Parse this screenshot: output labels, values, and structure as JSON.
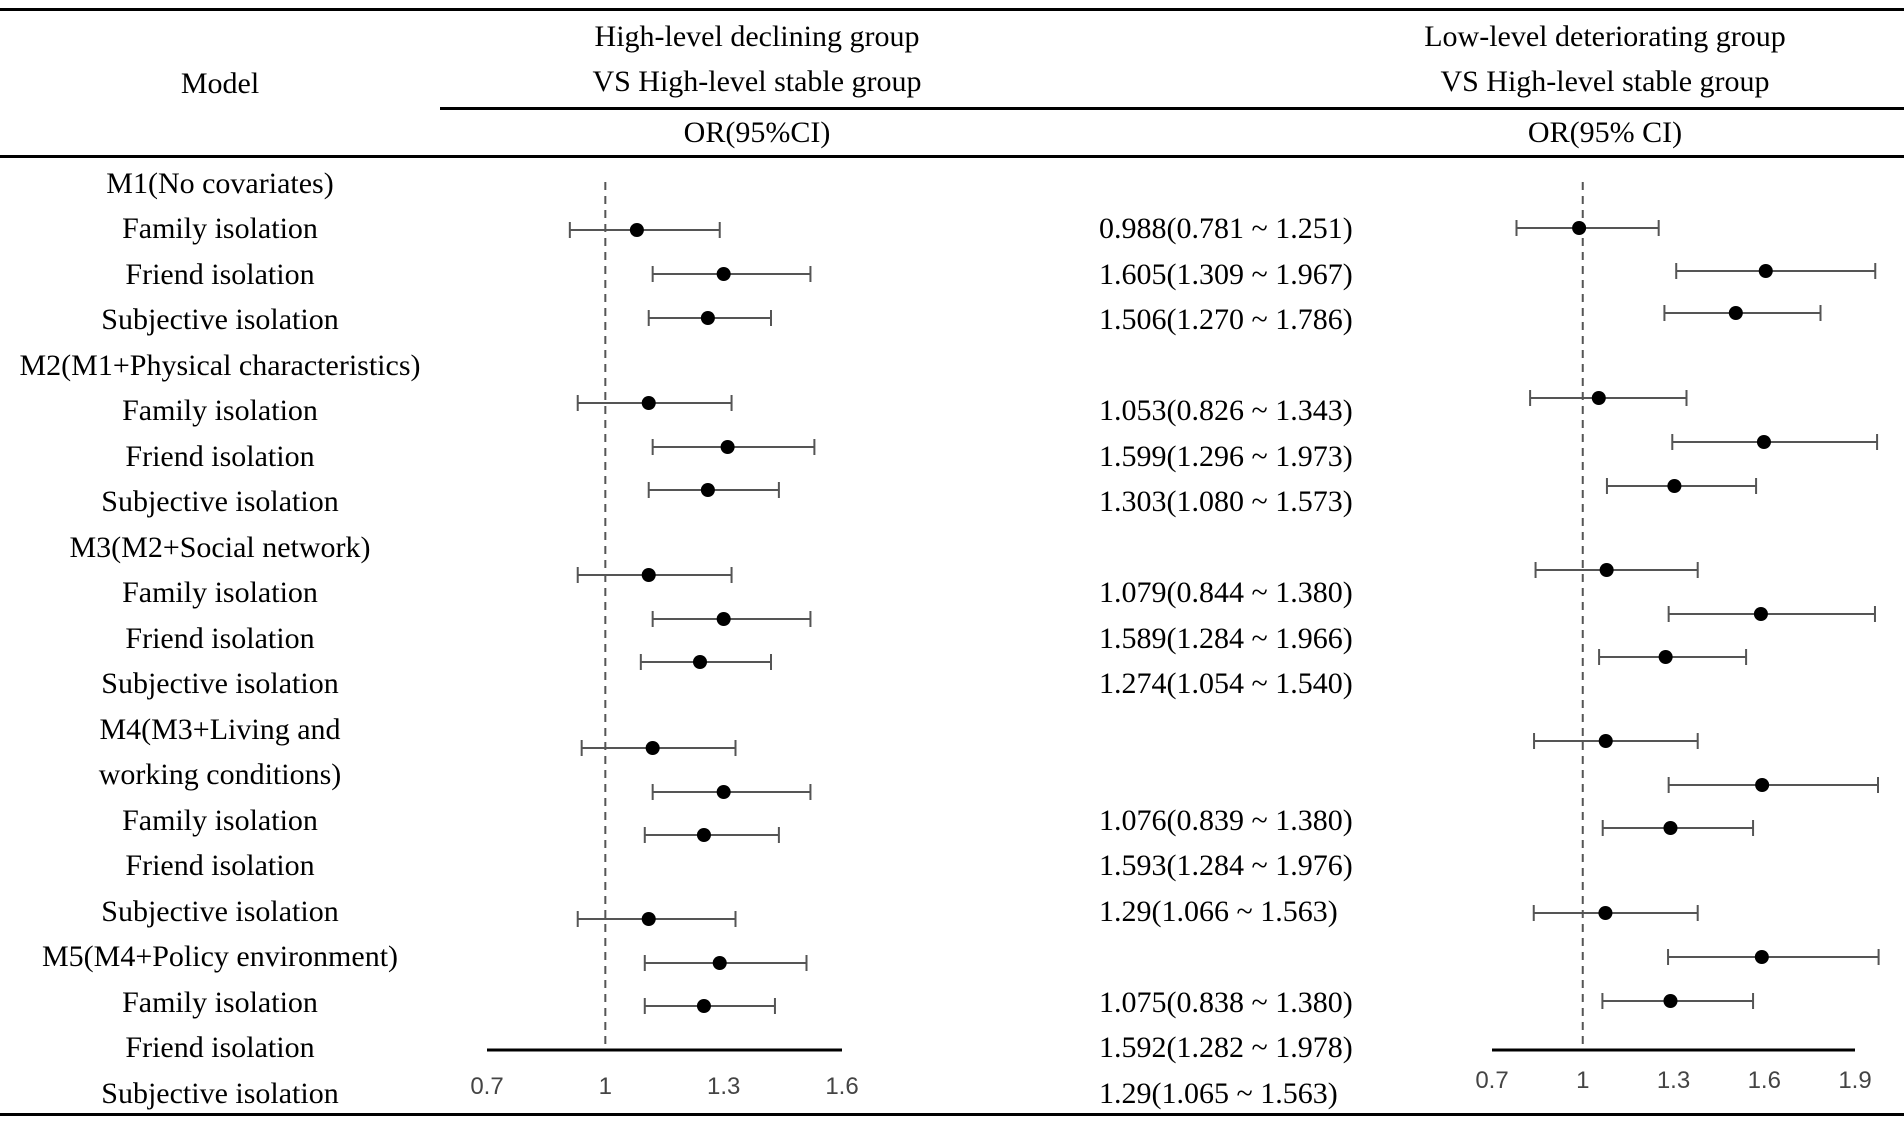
{
  "header": {
    "model_label": "Model",
    "group1_line1": "High-level declining group",
    "group1_line2": "VS High-level stable group",
    "group2_line1": "Low-level deteriorating group",
    "group2_line2": "VS High-level stable group",
    "or_label_1": "OR(95%CI)",
    "or_label_2": "OR(95% CI)"
  },
  "rows": [
    {
      "label": "M1(No covariates)",
      "or": ""
    },
    {
      "label": "Family isolation",
      "or": "0.988(0.781 ~ 1.251)"
    },
    {
      "label": "Friend isolation",
      "or": "1.605(1.309 ~ 1.967)"
    },
    {
      "label": "Subjective isolation",
      "or": "1.506(1.270 ~ 1.786)"
    },
    {
      "label": "M2(M1+Physical characteristics)",
      "or": ""
    },
    {
      "label": "Family isolation",
      "or": "1.053(0.826 ~ 1.343)"
    },
    {
      "label": "Friend isolation",
      "or": "1.599(1.296 ~ 1.973)"
    },
    {
      "label": "Subjective isolation",
      "or": "1.303(1.080 ~ 1.573)"
    },
    {
      "label": "M3(M2+Social network)",
      "or": ""
    },
    {
      "label": "Family isolation",
      "or": "1.079(0.844 ~ 1.380)"
    },
    {
      "label": "Friend isolation",
      "or": "1.589(1.284 ~ 1.966)"
    },
    {
      "label": "Subjective isolation",
      "or": "1.274(1.054 ~ 1.540)"
    },
    {
      "label": "M4(M3+Living and",
      "or": ""
    },
    {
      "label": "working conditions)",
      "or": ""
    },
    {
      "label": "Family isolation",
      "or": "1.076(0.839 ~ 1.380)"
    },
    {
      "label": "Friend isolation",
      "or": "1.593(1.284 ~ 1.976)"
    },
    {
      "label": "Subjective isolation",
      "or": "1.29(1.066 ~ 1.563)"
    },
    {
      "label": "M5(M4+Policy environment)",
      "or": ""
    },
    {
      "label": "Family isolation",
      "or": "1.075(0.838 ~ 1.380)"
    },
    {
      "label": "Friend isolation",
      "or": "1.592(1.282 ~ 1.978)"
    },
    {
      "label": "Subjective isolation",
      "or": "1.29(1.065 ~ 1.563)"
    }
  ],
  "chart_data": [
    {
      "type": "forest",
      "title": "High-level declining group VS High-level stable group",
      "reference_line": 1,
      "xlim": [
        0.7,
        1.6
      ],
      "ticks": [
        "0.7",
        "1",
        "1.3",
        "1.6"
      ],
      "series": [
        {
          "name": "M1 Family isolation",
          "or": 1.08,
          "lo": 0.91,
          "hi": 1.29
        },
        {
          "name": "M1 Friend isolation",
          "or": 1.3,
          "lo": 1.12,
          "hi": 1.52
        },
        {
          "name": "M1 Subjective isolation",
          "or": 1.26,
          "lo": 1.11,
          "hi": 1.42
        },
        {
          "name": "M2 Family isolation",
          "or": 1.11,
          "lo": 0.93,
          "hi": 1.32
        },
        {
          "name": "M2 Friend isolation",
          "or": 1.31,
          "lo": 1.12,
          "hi": 1.53
        },
        {
          "name": "M2 Subjective isolation",
          "or": 1.26,
          "lo": 1.11,
          "hi": 1.44
        },
        {
          "name": "M3 Family isolation",
          "or": 1.11,
          "lo": 0.93,
          "hi": 1.32
        },
        {
          "name": "M3 Friend isolation",
          "or": 1.3,
          "lo": 1.12,
          "hi": 1.52
        },
        {
          "name": "M3 Subjective isolation",
          "or": 1.24,
          "lo": 1.09,
          "hi": 1.42
        },
        {
          "name": "M4 Family isolation",
          "or": 1.12,
          "lo": 0.94,
          "hi": 1.33
        },
        {
          "name": "M4 Friend isolation",
          "or": 1.3,
          "lo": 1.12,
          "hi": 1.52
        },
        {
          "name": "M4 Subjective isolation",
          "or": 1.25,
          "lo": 1.1,
          "hi": 1.44
        },
        {
          "name": "M5 Family isolation",
          "or": 1.11,
          "lo": 0.93,
          "hi": 1.33
        },
        {
          "name": "M5 Friend isolation",
          "or": 1.29,
          "lo": 1.1,
          "hi": 1.51
        },
        {
          "name": "M5 Subjective isolation",
          "or": 1.25,
          "lo": 1.1,
          "hi": 1.43
        }
      ]
    },
    {
      "type": "forest",
      "title": "Low-level deteriorating group VS High-level stable group",
      "reference_line": 1,
      "xlim": [
        0.7,
        1.9
      ],
      "ticks": [
        "0.7",
        "1",
        "1.3",
        "1.6",
        "1.9"
      ],
      "series": [
        {
          "name": "M1 Family isolation",
          "or": 0.988,
          "lo": 0.781,
          "hi": 1.251
        },
        {
          "name": "M1 Friend isolation",
          "or": 1.605,
          "lo": 1.309,
          "hi": 1.967
        },
        {
          "name": "M1 Subjective isolation",
          "or": 1.506,
          "lo": 1.27,
          "hi": 1.786
        },
        {
          "name": "M2 Family isolation",
          "or": 1.053,
          "lo": 0.826,
          "hi": 1.343
        },
        {
          "name": "M2 Friend isolation",
          "or": 1.599,
          "lo": 1.296,
          "hi": 1.973
        },
        {
          "name": "M2 Subjective isolation",
          "or": 1.303,
          "lo": 1.08,
          "hi": 1.573
        },
        {
          "name": "M3 Family isolation",
          "or": 1.079,
          "lo": 0.844,
          "hi": 1.38
        },
        {
          "name": "M3 Friend isolation",
          "or": 1.589,
          "lo": 1.284,
          "hi": 1.966
        },
        {
          "name": "M3 Subjective isolation",
          "or": 1.274,
          "lo": 1.054,
          "hi": 1.54
        },
        {
          "name": "M4 Family isolation",
          "or": 1.076,
          "lo": 0.839,
          "hi": 1.38
        },
        {
          "name": "M4 Friend isolation",
          "or": 1.593,
          "lo": 1.284,
          "hi": 1.976
        },
        {
          "name": "M4 Subjective isolation",
          "or": 1.29,
          "lo": 1.066,
          "hi": 1.563
        },
        {
          "name": "M5 Family isolation",
          "or": 1.075,
          "lo": 0.838,
          "hi": 1.38
        },
        {
          "name": "M5 Friend isolation",
          "or": 1.592,
          "lo": 1.282,
          "hi": 1.978
        },
        {
          "name": "M5 Subjective isolation",
          "or": 1.29,
          "lo": 1.065,
          "hi": 1.563
        }
      ]
    }
  ]
}
